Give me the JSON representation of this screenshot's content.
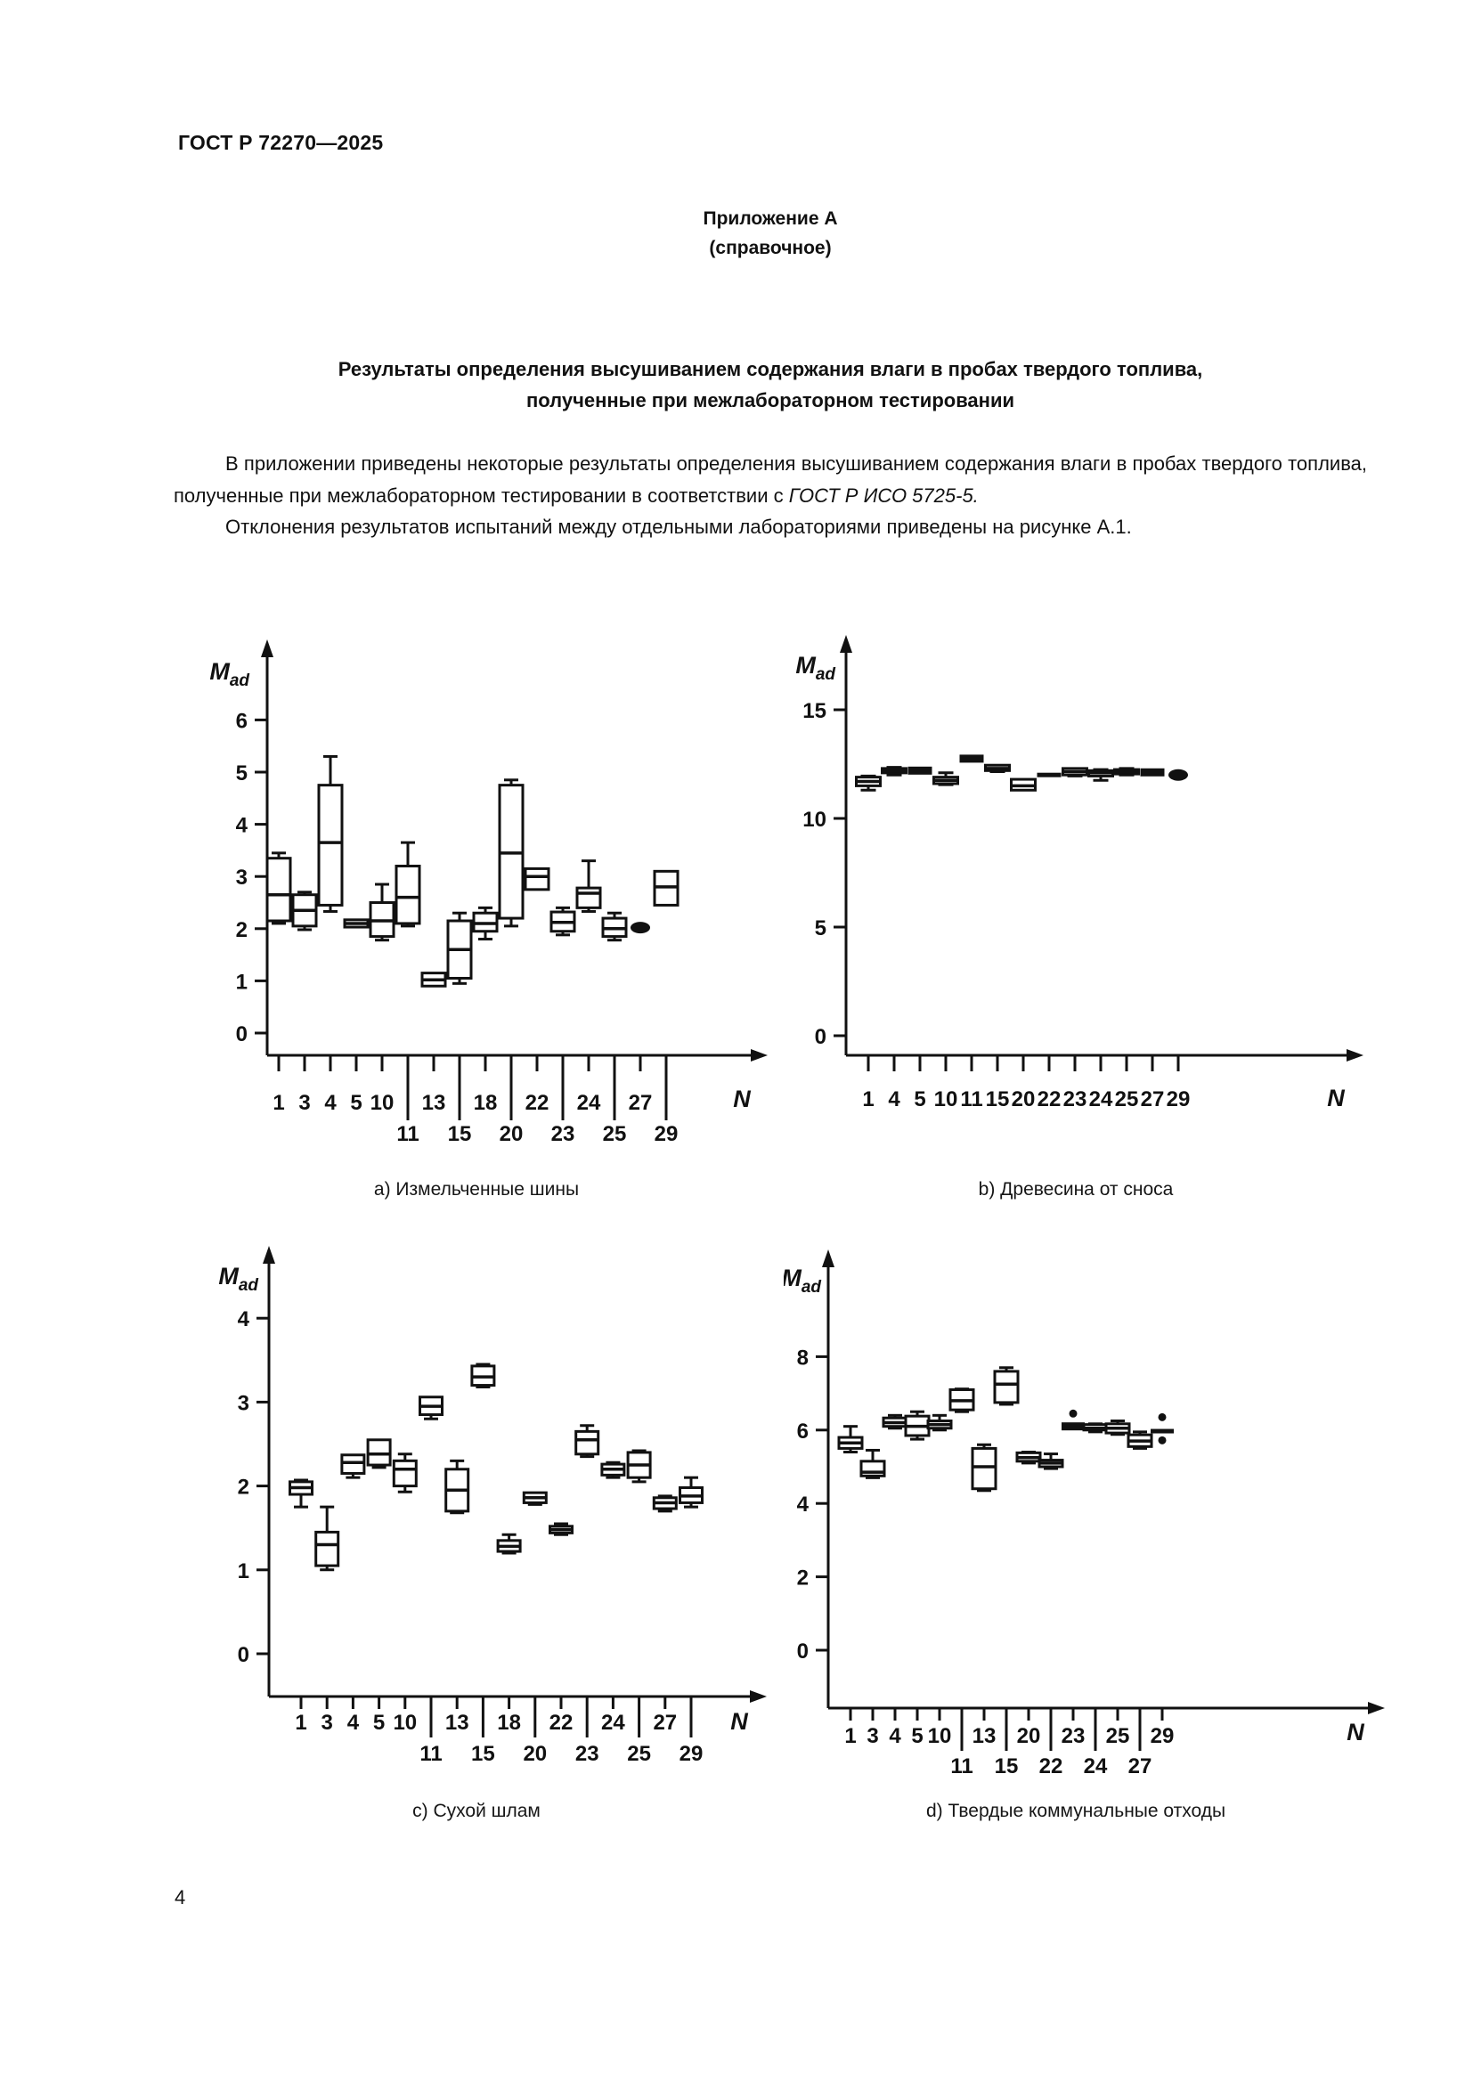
{
  "page": {
    "standard_code": "ГОСТ Р 72270—2025",
    "appendix_heading": "Приложение А",
    "appendix_subheading": "(справочное)",
    "title_line1": "Результаты определения высушиванием содержания влаги в пробах твердого топлива,",
    "title_line2": "полученные при межлабораторном тестировании",
    "paragraph1_text": "В приложении приведены некоторые результаты определения высушиванием содержания влаги в пробах твердого топлива, полученные при межлабораторном тестировании в соответствии с ",
    "paragraph1_ref": "ГОСТ Р ИСО 5725-5.",
    "paragraph2": "Отклонения результатов испытаний между отдельными лабораториями приведены на рисунке А.1.",
    "page_number": "4"
  },
  "axes": {
    "y_label_main": "M",
    "y_label_sub": "ad",
    "x_label": "N"
  },
  "chart_data": [
    {
      "id": "a",
      "type": "box",
      "caption": "a)  Измельченные шины",
      "ylabel": "Mad",
      "xlabel": "N",
      "grid": false,
      "y_ticks": [
        0,
        1,
        2,
        3,
        4,
        5,
        6
      ],
      "ylim": [
        0,
        6.9
      ],
      "labs": [
        {
          "n": "1",
          "row": 1,
          "style": "box",
          "lo": 2.1,
          "q1": 2.15,
          "med": 2.65,
          "q3": 3.35,
          "hi": 3.45
        },
        {
          "n": "3",
          "row": 1,
          "style": "box",
          "lo": 1.98,
          "q1": 2.05,
          "med": 2.35,
          "q3": 2.65,
          "hi": 2.7
        },
        {
          "n": "4",
          "row": 1,
          "style": "box",
          "lo": 2.33,
          "q1": 2.45,
          "med": 3.65,
          "q3": 4.75,
          "hi": 5.3
        },
        {
          "n": "5",
          "row": 1,
          "style": "box",
          "lo": 2.03,
          "q1": 2.03,
          "med": 2.1,
          "q3": 2.17,
          "hi": 2.17
        },
        {
          "n": "10",
          "row": 1,
          "style": "box",
          "lo": 1.78,
          "q1": 1.85,
          "med": 2.15,
          "q3": 2.5,
          "hi": 2.85
        },
        {
          "n": "11",
          "row": 2,
          "style": "box",
          "lo": 2.05,
          "q1": 2.1,
          "med": 2.6,
          "q3": 3.2,
          "hi": 3.65
        },
        {
          "n": "13",
          "row": 1,
          "style": "box",
          "lo": 0.9,
          "q1": 0.9,
          "med": 1.02,
          "q3": 1.15,
          "hi": 1.15
        },
        {
          "n": "15",
          "row": 2,
          "style": "box",
          "lo": 0.95,
          "q1": 1.05,
          "med": 1.6,
          "q3": 2.15,
          "hi": 2.3
        },
        {
          "n": "18",
          "row": 1,
          "style": "box",
          "lo": 1.8,
          "q1": 1.95,
          "med": 2.1,
          "q3": 2.3,
          "hi": 2.4
        },
        {
          "n": "20",
          "row": 2,
          "style": "box",
          "lo": 2.05,
          "q1": 2.2,
          "med": 3.45,
          "q3": 4.75,
          "hi": 4.85
        },
        {
          "n": "22",
          "row": 1,
          "style": "box",
          "lo": 2.75,
          "q1": 2.75,
          "med": 3.0,
          "q3": 3.15,
          "hi": 3.15
        },
        {
          "n": "23",
          "row": 2,
          "style": "box",
          "lo": 1.88,
          "q1": 1.95,
          "med": 2.12,
          "q3": 2.32,
          "hi": 2.4
        },
        {
          "n": "24",
          "row": 1,
          "style": "box",
          "lo": 2.33,
          "q1": 2.4,
          "med": 2.68,
          "q3": 2.78,
          "hi": 3.3
        },
        {
          "n": "25",
          "row": 2,
          "style": "box",
          "lo": 1.78,
          "q1": 1.85,
          "med": 2.0,
          "q3": 2.2,
          "hi": 2.3
        },
        {
          "n": "27",
          "row": 1,
          "style": "dot",
          "med": 2.02
        },
        {
          "n": "29",
          "row": 2,
          "style": "box",
          "lo": 2.45,
          "q1": 2.45,
          "med": 2.8,
          "q3": 3.1,
          "hi": 3.1
        }
      ]
    },
    {
      "id": "b",
      "type": "box",
      "caption": "b)  Древесина от сноса",
      "ylabel": "Mad",
      "xlabel": "N",
      "grid": false,
      "y_ticks": [
        0,
        5,
        10,
        15
      ],
      "ylim": [
        0,
        16.5
      ],
      "labs": [
        {
          "n": "1",
          "row": 1,
          "style": "box",
          "lo": 11.3,
          "q1": 11.5,
          "med": 11.7,
          "q3": 11.9,
          "hi": 11.95
        },
        {
          "n": "4",
          "row": 1,
          "style": "box",
          "lo": 12.0,
          "q1": 12.1,
          "med": 12.2,
          "q3": 12.3,
          "hi": 12.35
        },
        {
          "n": "5",
          "row": 1,
          "style": "bar",
          "med": 12.2
        },
        {
          "n": "10",
          "row": 1,
          "style": "box",
          "lo": 11.55,
          "q1": 11.6,
          "med": 11.75,
          "q3": 11.9,
          "hi": 12.1
        },
        {
          "n": "11",
          "row": 1,
          "style": "bar",
          "med": 12.75
        },
        {
          "n": "15",
          "row": 1,
          "style": "box",
          "lo": 12.15,
          "q1": 12.2,
          "med": 12.3,
          "q3": 12.45,
          "hi": 12.45
        },
        {
          "n": "20",
          "row": 1,
          "style": "box",
          "lo": 11.3,
          "q1": 11.3,
          "med": 11.5,
          "q3": 11.8,
          "hi": 11.8
        },
        {
          "n": "22",
          "row": 1,
          "style": "dash",
          "med": 12.0
        },
        {
          "n": "23",
          "row": 1,
          "style": "box",
          "lo": 11.95,
          "q1": 12.0,
          "med": 12.15,
          "q3": 12.3,
          "hi": 12.3
        },
        {
          "n": "24",
          "row": 1,
          "style": "box",
          "lo": 11.75,
          "q1": 11.95,
          "med": 12.1,
          "q3": 12.2,
          "hi": 12.25
        },
        {
          "n": "25",
          "row": 1,
          "style": "box",
          "lo": 12.0,
          "q1": 12.05,
          "med": 12.15,
          "q3": 12.25,
          "hi": 12.3
        },
        {
          "n": "27",
          "row": 1,
          "style": "bar",
          "med": 12.12
        },
        {
          "n": "29",
          "row": 1,
          "style": "dot",
          "med": 12.0
        }
      ]
    },
    {
      "id": "c",
      "type": "box",
      "caption": "c)  Сухой шлам",
      "ylabel": "Mad",
      "xlabel": "N",
      "grid": false,
      "y_ticks": [
        0,
        1,
        2,
        3,
        4
      ],
      "ylim": [
        0,
        4.6
      ],
      "labs": [
        {
          "n": "1",
          "row": 1,
          "style": "box",
          "lo": 1.75,
          "q1": 1.9,
          "med": 1.98,
          "q3": 2.05,
          "hi": 2.07
        },
        {
          "n": "3",
          "row": 1,
          "style": "box",
          "lo": 1.0,
          "q1": 1.05,
          "med": 1.3,
          "q3": 1.45,
          "hi": 1.75
        },
        {
          "n": "4",
          "row": 1,
          "style": "box",
          "lo": 2.1,
          "q1": 2.15,
          "med": 2.28,
          "q3": 2.37,
          "hi": 2.37
        },
        {
          "n": "5",
          "row": 1,
          "style": "box",
          "lo": 2.22,
          "q1": 2.25,
          "med": 2.38,
          "q3": 2.55,
          "hi": 2.55
        },
        {
          "n": "10",
          "row": 1,
          "style": "box",
          "lo": 1.93,
          "q1": 2.0,
          "med": 2.2,
          "q3": 2.3,
          "hi": 2.38
        },
        {
          "n": "11",
          "row": 2,
          "style": "box",
          "lo": 2.8,
          "q1": 2.85,
          "med": 2.95,
          "q3": 3.06,
          "hi": 3.06
        },
        {
          "n": "13",
          "row": 1,
          "style": "box",
          "lo": 1.68,
          "q1": 1.7,
          "med": 1.95,
          "q3": 2.2,
          "hi": 2.3
        },
        {
          "n": "15",
          "row": 2,
          "style": "box",
          "lo": 3.18,
          "q1": 3.2,
          "med": 3.3,
          "q3": 3.43,
          "hi": 3.45
        },
        {
          "n": "18",
          "row": 1,
          "style": "box",
          "lo": 1.2,
          "q1": 1.22,
          "med": 1.28,
          "q3": 1.35,
          "hi": 1.42
        },
        {
          "n": "20",
          "row": 2,
          "style": "box",
          "lo": 1.78,
          "q1": 1.8,
          "med": 1.86,
          "q3": 1.92,
          "hi": 1.92
        },
        {
          "n": "22",
          "row": 1,
          "style": "box",
          "lo": 1.42,
          "q1": 1.44,
          "med": 1.48,
          "q3": 1.52,
          "hi": 1.55
        },
        {
          "n": "23",
          "row": 2,
          "style": "box",
          "lo": 2.35,
          "q1": 2.38,
          "med": 2.55,
          "q3": 2.65,
          "hi": 2.72
        },
        {
          "n": "24",
          "row": 1,
          "style": "box",
          "lo": 2.1,
          "q1": 2.13,
          "med": 2.2,
          "q3": 2.26,
          "hi": 2.28
        },
        {
          "n": "25",
          "row": 2,
          "style": "box",
          "lo": 2.05,
          "q1": 2.1,
          "med": 2.25,
          "q3": 2.4,
          "hi": 2.42
        },
        {
          "n": "27",
          "row": 1,
          "style": "box",
          "lo": 1.7,
          "q1": 1.73,
          "med": 1.8,
          "q3": 1.86,
          "hi": 1.88
        },
        {
          "n": "29",
          "row": 2,
          "style": "box",
          "lo": 1.75,
          "q1": 1.8,
          "med": 1.88,
          "q3": 1.98,
          "hi": 2.1
        }
      ]
    },
    {
      "id": "d",
      "type": "box",
      "caption": "d)  Твердые коммунальные отходы",
      "ylabel": "Mad",
      "xlabel": "N",
      "grid": false,
      "y_ticks": [
        0,
        2,
        4,
        6,
        8
      ],
      "ylim": [
        0,
        9.7
      ],
      "labs": [
        {
          "n": "1",
          "row": 1,
          "style": "box",
          "lo": 5.4,
          "q1": 5.5,
          "med": 5.65,
          "q3": 5.8,
          "hi": 6.1
        },
        {
          "n": "3",
          "row": 1,
          "style": "box",
          "lo": 4.7,
          "q1": 4.75,
          "med": 4.85,
          "q3": 5.15,
          "hi": 5.45
        },
        {
          "n": "4",
          "row": 1,
          "style": "box",
          "lo": 6.05,
          "q1": 6.1,
          "med": 6.2,
          "q3": 6.33,
          "hi": 6.4
        },
        {
          "n": "5",
          "row": 1,
          "style": "box",
          "lo": 5.75,
          "q1": 5.85,
          "med": 6.1,
          "q3": 6.38,
          "hi": 6.5
        },
        {
          "n": "10",
          "row": 1,
          "style": "box",
          "lo": 6.0,
          "q1": 6.05,
          "med": 6.15,
          "q3": 6.25,
          "hi": 6.4
        },
        {
          "n": "11",
          "row": 2,
          "style": "box",
          "lo": 6.5,
          "q1": 6.55,
          "med": 6.8,
          "q3": 7.1,
          "hi": 7.12
        },
        {
          "n": "13",
          "row": 1,
          "style": "box",
          "lo": 4.35,
          "q1": 4.4,
          "med": 5.0,
          "q3": 5.5,
          "hi": 5.6
        },
        {
          "n": "15",
          "row": 2,
          "style": "box",
          "lo": 6.7,
          "q1": 6.75,
          "med": 7.25,
          "q3": 7.6,
          "hi": 7.7
        },
        {
          "n": "20",
          "row": 1,
          "style": "box",
          "lo": 5.1,
          "q1": 5.15,
          "med": 5.25,
          "q3": 5.38,
          "hi": 5.4
        },
        {
          "n": "22",
          "row": 2,
          "style": "box",
          "lo": 4.95,
          "q1": 5.0,
          "med": 5.1,
          "q3": 5.18,
          "hi": 5.35
        },
        {
          "n": "23",
          "row": 1,
          "style": "bar",
          "med": 6.1,
          "outliers": [
            6.45
          ]
        },
        {
          "n": "24",
          "row": 2,
          "style": "box",
          "lo": 5.95,
          "q1": 6.0,
          "med": 6.05,
          "q3": 6.15,
          "hi": 6.17
        },
        {
          "n": "25",
          "row": 1,
          "style": "box",
          "lo": 5.88,
          "q1": 5.92,
          "med": 6.05,
          "q3": 6.17,
          "hi": 6.25
        },
        {
          "n": "27",
          "row": 2,
          "style": "box",
          "lo": 5.5,
          "q1": 5.55,
          "med": 5.7,
          "q3": 5.87,
          "hi": 5.95
        },
        {
          "n": "29",
          "row": 1,
          "style": "dash",
          "med": 5.97,
          "outliers": [
            6.35,
            5.72
          ]
        }
      ]
    }
  ]
}
